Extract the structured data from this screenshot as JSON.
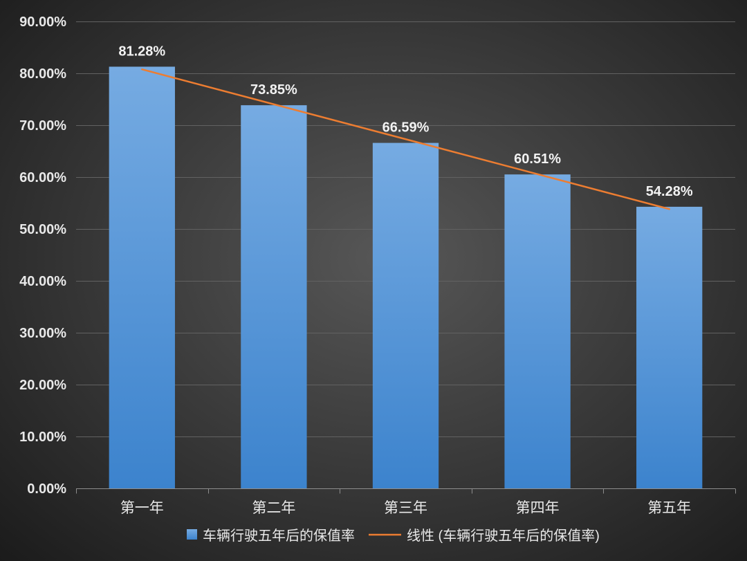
{
  "chart_data": {
    "type": "bar",
    "categories": [
      "第一年",
      "第二年",
      "第三年",
      "第四年",
      "第五年"
    ],
    "series": [
      {
        "name": "车辆行驶五年后的保值率",
        "values": [
          81.28,
          73.85,
          66.59,
          60.51,
          54.28
        ],
        "data_labels": [
          "81.28%",
          "73.85%",
          "66.59%",
          "60.51%",
          "54.28%"
        ]
      }
    ],
    "trendline": {
      "type": "linear",
      "series": 0,
      "name": "线性 (车辆行驶五年后的保值率)"
    },
    "ylim": [
      0,
      90
    ],
    "yticks": [
      0,
      10,
      20,
      30,
      40,
      50,
      60,
      70,
      80,
      90
    ],
    "ytick_labels": [
      "0.00%",
      "10.00%",
      "20.00%",
      "30.00%",
      "40.00%",
      "50.00%",
      "60.00%",
      "70.00%",
      "80.00%",
      "90.00%"
    ],
    "grid": true,
    "legend": {
      "position": "bottom"
    }
  },
  "colors": {
    "background_center": "#575757",
    "background_edge": "#1b1b1b",
    "text": "#e9e9e9",
    "grid": "#626262",
    "axis": "#8e8e8e",
    "bar_top": "#76abe2",
    "bar_bottom": "#3c83cd",
    "trendline": "#ed7d31"
  }
}
